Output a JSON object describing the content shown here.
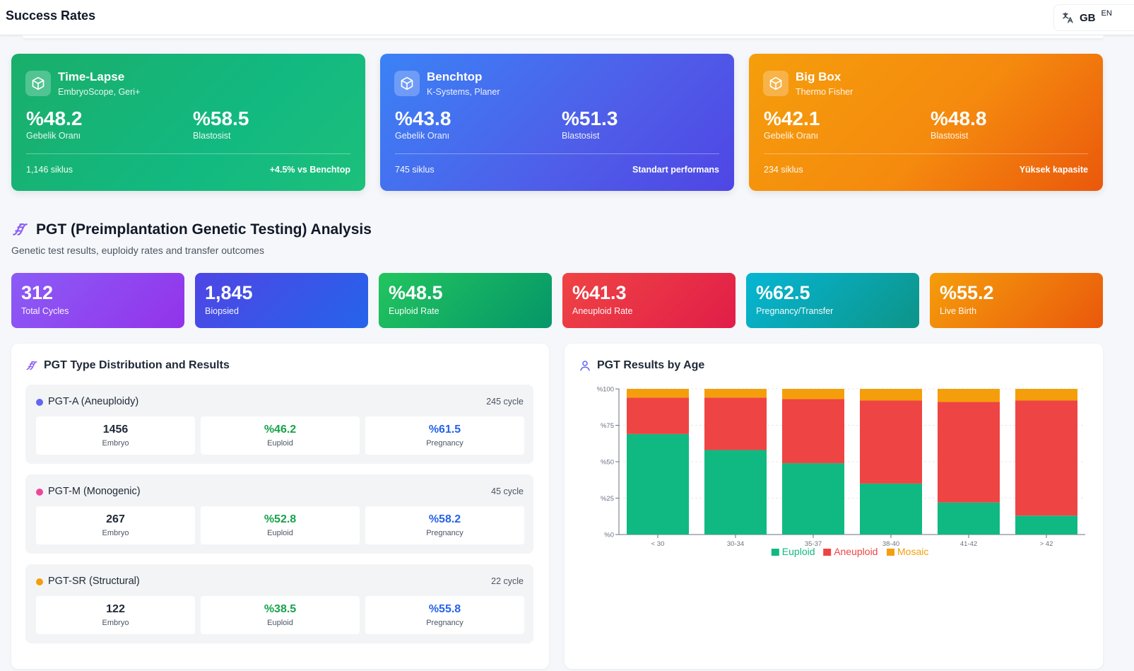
{
  "header": {
    "title": "Success Rates",
    "lang_code": "GB",
    "lang_sub": "EN"
  },
  "incubators": [
    {
      "name": "Time-Lapse",
      "subtitle": "EmbryoScope, Geri+",
      "metric1_value": "%48.2",
      "metric1_label": "Gebelik Oranı",
      "metric2_value": "%58.5",
      "metric2_label": "Blastosist",
      "cycles": "1,146 siklus",
      "note": "+4.5% vs Benchtop"
    },
    {
      "name": "Benchtop",
      "subtitle": "K-Systems, Planer",
      "metric1_value": "%43.8",
      "metric1_label": "Gebelik Oranı",
      "metric2_value": "%51.3",
      "metric2_label": "Blastosist",
      "cycles": "745 siklus",
      "note": "Standart performans"
    },
    {
      "name": "Big Box",
      "subtitle": "Thermo Fisher",
      "metric1_value": "%42.1",
      "metric1_label": "Gebelik Oranı",
      "metric2_value": "%48.8",
      "metric2_label": "Blastosist",
      "cycles": "234 siklus",
      "note": "Yüksek kapasite"
    }
  ],
  "pgt": {
    "title": "PGT (Preimplantation Genetic Testing) Analysis",
    "description": "Genetic test results, euploidy rates and transfer outcomes",
    "stats": [
      {
        "value": "312",
        "label": "Total Cycles"
      },
      {
        "value": "1,845",
        "label": "Biopsied"
      },
      {
        "value": "%48.5",
        "label": "Euploid Rate"
      },
      {
        "value": "%41.3",
        "label": "Aneuploid Rate"
      },
      {
        "value": "%62.5",
        "label": "Pregnancy/Transfer"
      },
      {
        "value": "%55.2",
        "label": "Live Birth"
      }
    ],
    "distribution": {
      "title": "PGT Type Distribution and Results",
      "types": [
        {
          "name": "PGT-A (Aneuploidy)",
          "cycles": "245 cycle",
          "color": "#6366f1",
          "embryo": "1456",
          "embryo_label": "Embryo",
          "euploid": "%46.2",
          "euploid_label": "Euploid",
          "pregnancy": "%61.5",
          "pregnancy_label": "Pregnancy"
        },
        {
          "name": "PGT-M (Monogenic)",
          "cycles": "45 cycle",
          "color": "#ec4899",
          "embryo": "267",
          "embryo_label": "Embryo",
          "euploid": "%52.8",
          "euploid_label": "Euploid",
          "pregnancy": "%58.2",
          "pregnancy_label": "Pregnancy"
        },
        {
          "name": "PGT-SR (Structural)",
          "cycles": "22 cycle",
          "color": "#f59e0b",
          "embryo": "122",
          "embryo_label": "Embryo",
          "euploid": "%38.5",
          "euploid_label": "Euploid",
          "pregnancy": "%55.8",
          "pregnancy_label": "Pregnancy"
        }
      ]
    },
    "age_panel_title": "PGT Results by Age"
  },
  "chart_data": {
    "type": "bar",
    "stacked": true,
    "categories": [
      "< 30",
      "30-34",
      "35-37",
      "38-40",
      "41-42",
      "> 42"
    ],
    "series": [
      {
        "name": "Euploid",
        "color": "#10b981",
        "values": [
          69,
          58,
          49,
          35,
          22,
          13
        ]
      },
      {
        "name": "Aneuploid",
        "color": "#ef4444",
        "values": [
          25,
          36,
          44,
          57,
          69,
          79
        ]
      },
      {
        "name": "Mosaic",
        "color": "#f59e0b",
        "values": [
          6,
          6,
          7,
          8,
          9,
          8
        ]
      }
    ],
    "yticks": [
      "%0",
      "%25",
      "%50",
      "%75",
      "%100"
    ],
    "ylim": [
      0,
      100
    ],
    "grid": true,
    "legend": "bottom"
  }
}
